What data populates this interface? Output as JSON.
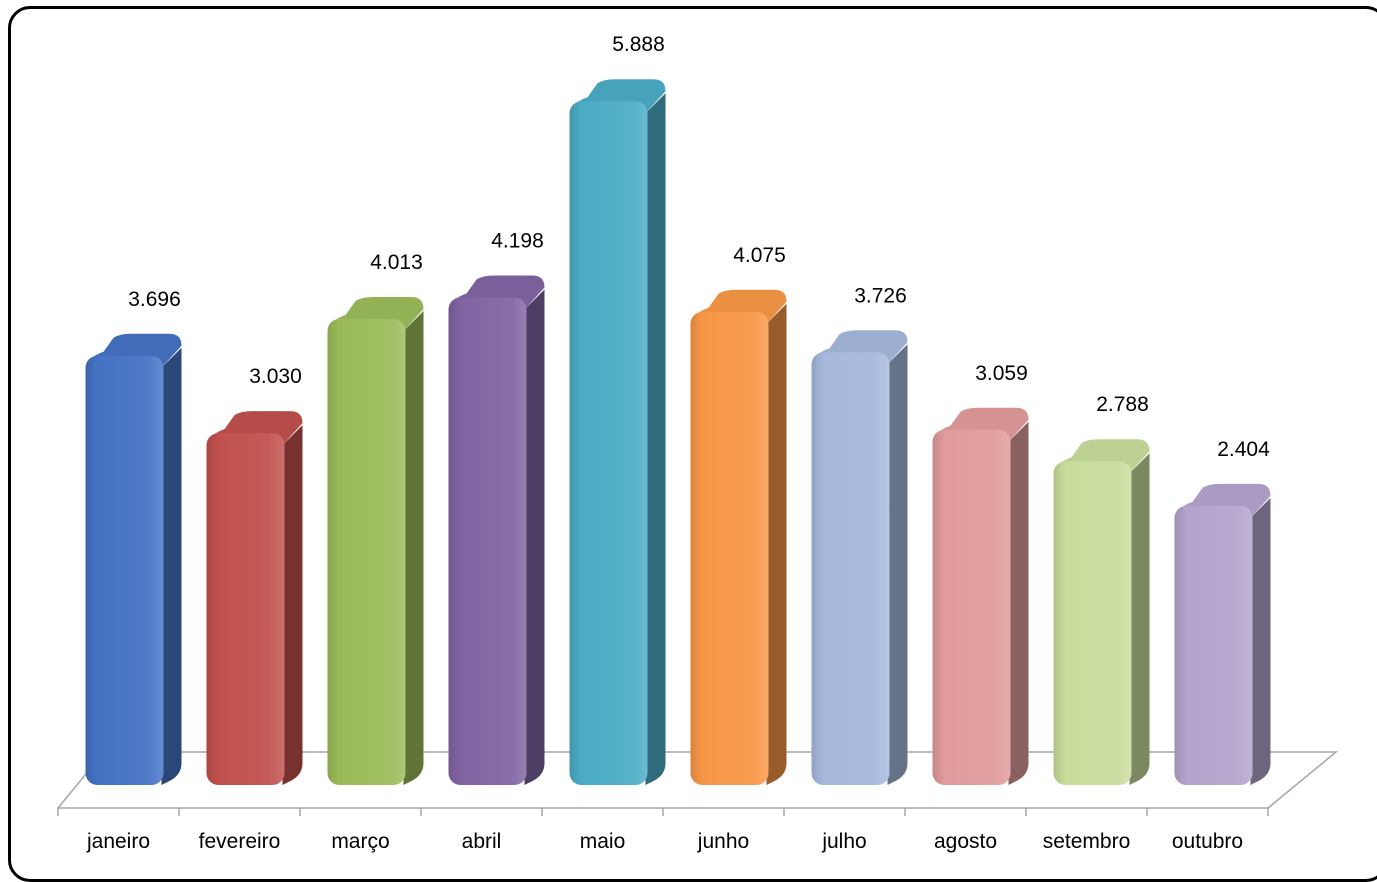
{
  "chart_data": {
    "type": "bar",
    "categories": [
      "janeiro",
      "fevereiro",
      "março",
      "abril",
      "maio",
      "junho",
      "julho",
      "agosto",
      "setembro",
      "outubro"
    ],
    "values": [
      3696,
      3030,
      4013,
      4198,
      5888,
      4075,
      3726,
      3059,
      2788,
      2404
    ],
    "value_labels": [
      "3.696",
      "3.030",
      "4.013",
      "4.198",
      "5.888",
      "4.075",
      "3.726",
      "3.059",
      "2.788",
      "2.404"
    ],
    "colors": [
      "#4472c4",
      "#c0504d",
      "#9bbb59",
      "#8064a2",
      "#4bacc6",
      "#f79646",
      "#a5b8dc",
      "#e09b9b",
      "#c8dc9b",
      "#b2a3cc"
    ],
    "title": "",
    "xlabel": "",
    "ylabel": "",
    "ylim": [
      0,
      6200
    ],
    "grid": false,
    "legend": "none",
    "style": "3d-cylinder-bars"
  }
}
